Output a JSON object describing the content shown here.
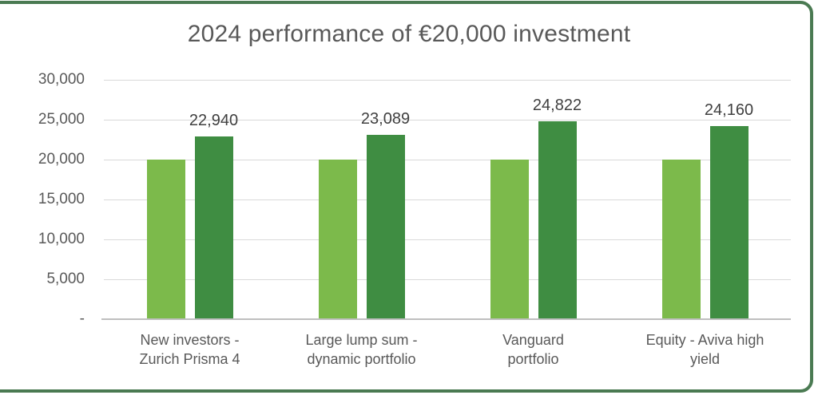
{
  "title": "2024 performance of €20,000 investment",
  "chart_data": {
    "type": "bar",
    "title": "2024 performance of €20,000 investment",
    "categories": [
      "New investors -\nZurich Prisma 4",
      "Large lump sum -\ndynamic portfolio",
      "Vanguard\nportfolio",
      "Equity - Aviva high\nyield"
    ],
    "series": [
      {
        "color": "#7CBA4B",
        "values": [
          20000,
          20000,
          20000,
          20000
        ],
        "data_labels": [
          "",
          "",
          "",
          ""
        ]
      },
      {
        "color": "#3F8D42",
        "values": [
          22940,
          23089,
          24822,
          24160
        ],
        "data_labels": [
          "22,940",
          "23,089",
          "24,822",
          "24,160"
        ]
      }
    ],
    "ylim": [
      0,
      30000
    ],
    "yticks": [
      {
        "value": 30000,
        "label": "30,000"
      },
      {
        "value": 25000,
        "label": "25,000"
      },
      {
        "value": 20000,
        "label": "20,000"
      },
      {
        "value": 15000,
        "label": "15,000"
      },
      {
        "value": 10000,
        "label": "10,000"
      },
      {
        "value": 5000,
        "label": "5,000"
      },
      {
        "value": 0,
        "label": "-"
      }
    ],
    "grid": "horizontal",
    "legend": "none"
  },
  "colors": {
    "bar_light": "#7CBA4B",
    "bar_dark": "#3F8D42",
    "frame_border": "#4A7A52",
    "gridline": "#D9D9D9",
    "baseline": "#BFBFBF",
    "title_text": "#595959",
    "axis_text": "#595959",
    "data_label_text": "#404040",
    "background": "#FFFFFF"
  }
}
